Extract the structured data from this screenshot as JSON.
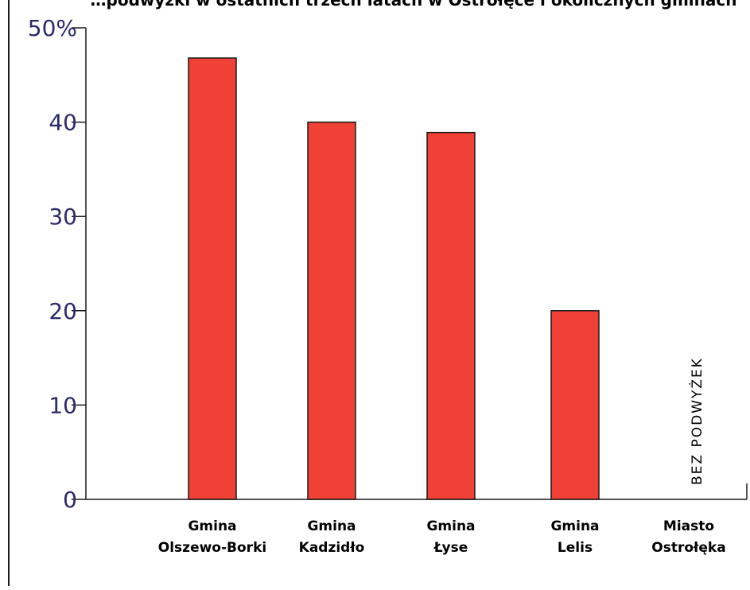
{
  "chart_data": {
    "type": "bar",
    "title": "…podwyżki w ostatnich trzech latach w Ostrołęce i okolicznych gminach",
    "categories": [
      [
        "Gmina",
        "Olszewo-Borki"
      ],
      [
        "Gmina",
        "Kadzidło"
      ],
      [
        "Gmina",
        "Łyse"
      ],
      [
        "Gmina",
        "Lelis"
      ],
      [
        "Miasto",
        "Ostrołęka"
      ]
    ],
    "values": [
      46.8,
      40.0,
      38.9,
      20.0,
      0
    ],
    "ylim": [
      0,
      50
    ],
    "yticks": [
      "0",
      "10",
      "20",
      "30",
      "40",
      "50%"
    ],
    "annotation": "BEZ  PODWYŻEK",
    "grid": false,
    "colors": {
      "bar": "#ef4135",
      "bar_stroke": "#1a1a1a",
      "axis": "#1a1a1a",
      "ytick_text": "#2b2a6b"
    }
  }
}
